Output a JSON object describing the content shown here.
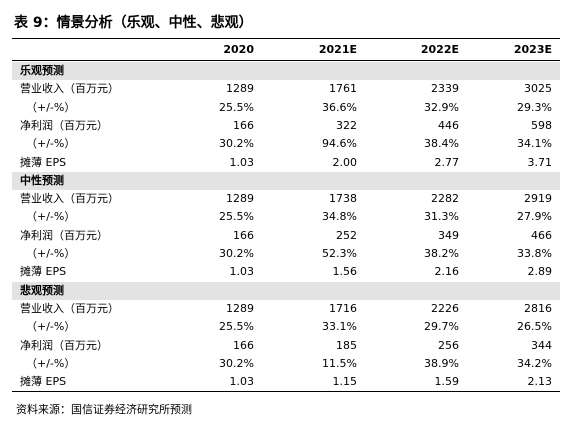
{
  "title": "表 9：情景分析（乐观、中性、悲观）",
  "table": {
    "columns": [
      "2020",
      "2021E",
      "2022E",
      "2023E"
    ],
    "sections": [
      {
        "name": "乐观预测",
        "rows": [
          {
            "label": "营业收入（百万元）",
            "values": [
              "1289",
              "1761",
              "2339",
              "3025"
            ]
          },
          {
            "label": "（+/-%）",
            "values": [
              "25.5%",
              "36.6%",
              "32.9%",
              "29.3%"
            ]
          },
          {
            "label": "净利润（百万元）",
            "values": [
              "166",
              "322",
              "446",
              "598"
            ]
          },
          {
            "label": "（+/-%）",
            "values": [
              "30.2%",
              "94.6%",
              "38.4%",
              "34.1%"
            ]
          },
          {
            "label": "摊薄 EPS",
            "values": [
              "1.03",
              "2.00",
              "2.77",
              "3.71"
            ]
          }
        ]
      },
      {
        "name": "中性预测",
        "rows": [
          {
            "label": "营业收入（百万元）",
            "values": [
              "1289",
              "1738",
              "2282",
              "2919"
            ]
          },
          {
            "label": "（+/-%）",
            "values": [
              "25.5%",
              "34.8%",
              "31.3%",
              "27.9%"
            ]
          },
          {
            "label": "净利润（百万元）",
            "values": [
              "166",
              "252",
              "349",
              "466"
            ]
          },
          {
            "label": "（+/-%）",
            "values": [
              "30.2%",
              "52.3%",
              "38.2%",
              "33.8%"
            ]
          },
          {
            "label": "摊薄 EPS",
            "values": [
              "1.03",
              "1.56",
              "2.16",
              "2.89"
            ]
          }
        ]
      },
      {
        "name": "悲观预测",
        "rows": [
          {
            "label": "营业收入（百万元）",
            "values": [
              "1289",
              "1716",
              "2226",
              "2816"
            ]
          },
          {
            "label": "（+/-%）",
            "values": [
              "25.5%",
              "33.1%",
              "29.7%",
              "26.5%"
            ]
          },
          {
            "label": "净利润（百万元）",
            "values": [
              "166",
              "185",
              "256",
              "344"
            ]
          },
          {
            "label": "（+/-%）",
            "values": [
              "30.2%",
              "11.5%",
              "38.9%",
              "34.2%"
            ]
          },
          {
            "label": "摊薄 EPS",
            "values": [
              "1.03",
              "1.15",
              "1.59",
              "2.13"
            ]
          }
        ]
      }
    ]
  },
  "source": "资料来源：国信证券经济研究所预测"
}
